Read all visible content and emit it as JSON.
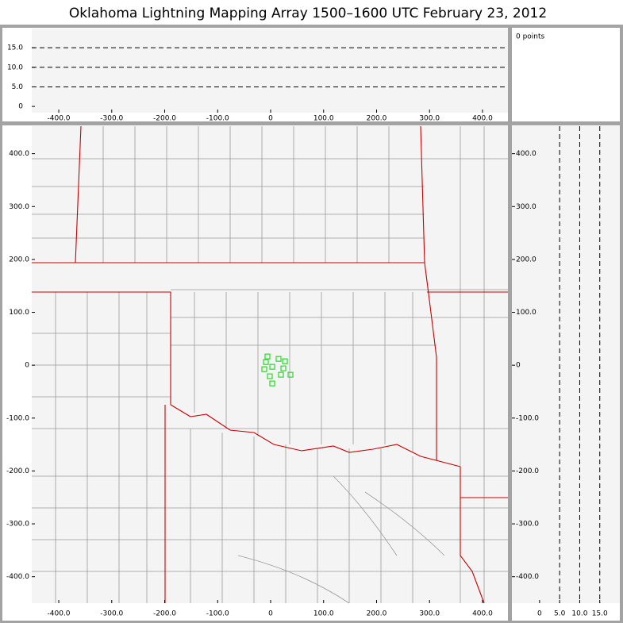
{
  "title": "Oklahoma Lightning Mapping Array   1500–1600 UTC  February 23, 2012",
  "point_count_label": "0 points",
  "chart_data": [
    {
      "type": "scatter",
      "xlim": [
        -451,
        448
      ],
      "ylim": [
        -1.6,
        19.9
      ],
      "grid": "y",
      "grid_style": "dashed",
      "xticks": [
        {
          "value": -400,
          "label": "-400.0"
        },
        {
          "value": -300,
          "label": "-300.0"
        },
        {
          "value": -200,
          "label": "-200.0"
        },
        {
          "value": -100,
          "label": "-100.0"
        },
        0,
        {
          "value": 100,
          "label": "100.0"
        },
        {
          "value": 200,
          "label": "200.0"
        },
        {
          "value": 300,
          "label": "300.0"
        },
        {
          "value": 400,
          "label": "400.0"
        }
      ],
      "yticks": [
        0,
        {
          "value": 5,
          "label": "5.0"
        },
        {
          "value": 10,
          "label": "10.0"
        },
        {
          "value": 15,
          "label": "15.0"
        }
      ]
    },
    {
      "type": "scatter",
      "xlim": [
        -451,
        448
      ],
      "ylim": [
        -450,
        452
      ],
      "xticks": [
        {
          "value": -400,
          "label": "-400.0"
        },
        {
          "value": -300,
          "label": "-300.0"
        },
        {
          "value": -200,
          "label": "-200.0"
        },
        {
          "value": -100,
          "label": "-100.0"
        },
        0,
        {
          "value": 100,
          "label": "100.0"
        },
        {
          "value": 200,
          "label": "200.0"
        },
        {
          "value": 300,
          "label": "300.0"
        },
        {
          "value": 400,
          "label": "400.0"
        }
      ],
      "yticks": [
        {
          "value": -400,
          "label": "-400.0"
        },
        {
          "value": -300,
          "label": "-300.0"
        },
        {
          "value": -200,
          "label": "-200.0"
        },
        {
          "value": -100,
          "label": "-100.0"
        },
        0,
        {
          "value": 100,
          "label": "100.0"
        },
        {
          "value": 200,
          "label": "200.0"
        },
        {
          "value": 300,
          "label": "300.0"
        },
        {
          "value": 400,
          "label": "400.0"
        }
      ],
      "series": [
        {
          "color": "#22dd22",
          "x": [
            -6,
            -9,
            15,
            27,
            -12,
            3,
            24,
            37.5,
            19.5,
            -1.5,
            3
          ],
          "values": [
            16.5,
            6,
            12,
            7.5,
            -7.5,
            -3,
            -6,
            -18,
            -18,
            -21,
            -34.5
          ]
        }
      ]
    },
    {
      "type": "scatter",
      "xlim": [
        -6.9,
        19.8
      ],
      "ylim": [
        -450,
        452
      ],
      "grid": "x",
      "grid_style": "dashed",
      "xticks": [
        0,
        {
          "value": 5,
          "label": "5.0"
        },
        {
          "value": 10,
          "label": "10.0"
        },
        {
          "value": 15,
          "label": "15.0"
        }
      ],
      "yticks": [
        {
          "value": -400,
          "label": "-400.0"
        },
        {
          "value": -300,
          "label": "-300.0"
        },
        {
          "value": -200,
          "label": "-200.0"
        },
        {
          "value": -100,
          "label": "-100.0"
        },
        0,
        {
          "value": 100,
          "label": "100.0"
        },
        {
          "value": 200,
          "label": "200.0"
        },
        {
          "value": 300,
          "label": "300.0"
        },
        {
          "value": 400,
          "label": "400.0"
        }
      ]
    }
  ]
}
